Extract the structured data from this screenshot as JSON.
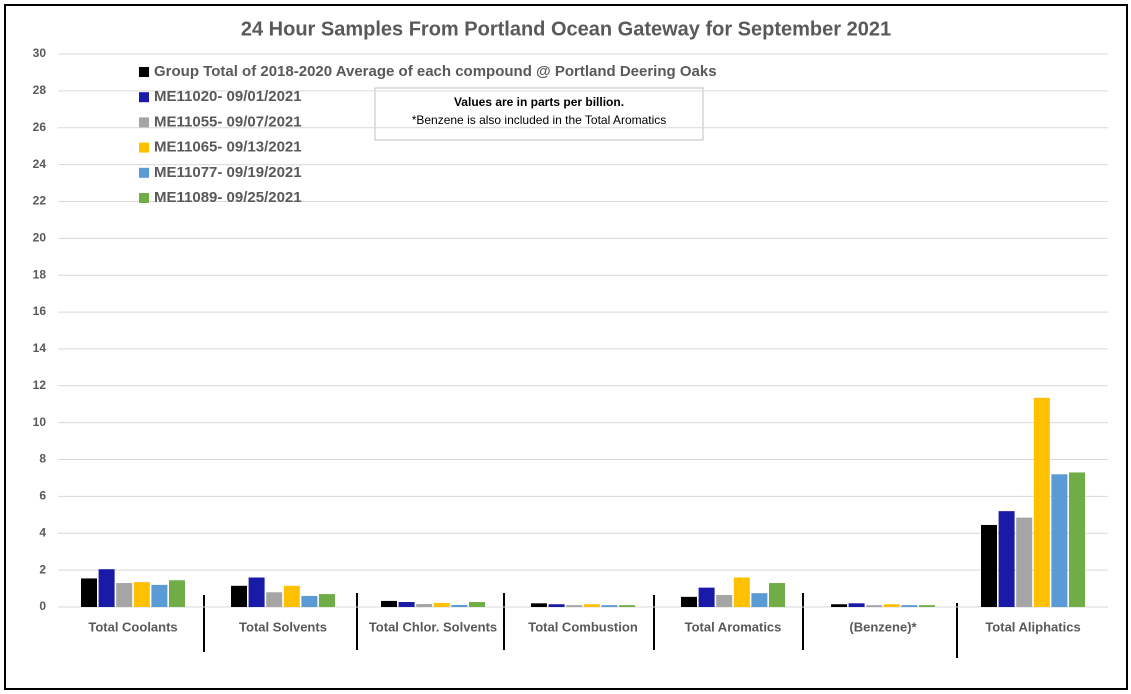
{
  "chart_data": {
    "type": "bar",
    "title": "24 Hour Samples From Portland Ocean Gateway for September 2021",
    "annotations": [
      "Values are in parts per billion.",
      "*Benzene is also included in the Total Aromatics"
    ],
    "categories": [
      "Total Coolants",
      "Total Solvents",
      "Total Chlor. Solvents",
      "Total Combustion",
      "Total Aromatics",
      "(Benzene)*",
      "Total Aliphatics"
    ],
    "series": [
      {
        "name": "Group Total of 2018-2020 Average of each compound @ Portland Deering Oaks",
        "color": "#000000",
        "values": [
          1.55,
          1.15,
          0.33,
          0.2,
          0.55,
          0.15,
          4.45
        ]
      },
      {
        "name": "ME11020- 09/01/2021",
        "color": "#1a1aa8",
        "values": [
          2.05,
          1.6,
          0.27,
          0.15,
          1.05,
          0.2,
          5.2
        ]
      },
      {
        "name": "ME11055- 09/07/2021",
        "color": "#a5a5a5",
        "values": [
          1.3,
          0.8,
          0.16,
          0.1,
          0.65,
          0.1,
          4.85
        ]
      },
      {
        "name": "ME11065- 09/13/2021",
        "color": "#ffc000",
        "values": [
          1.35,
          1.15,
          0.22,
          0.15,
          1.6,
          0.15,
          11.35
        ]
      },
      {
        "name": "ME11077- 09/19/2021",
        "color": "#5b9bd5",
        "values": [
          1.2,
          0.6,
          0.11,
          0.1,
          0.75,
          0.1,
          7.2
        ]
      },
      {
        "name": "ME11089- 09/25/2021",
        "color": "#70ad47",
        "values": [
          1.45,
          0.7,
          0.27,
          0.1,
          1.3,
          0.1,
          7.3
        ]
      }
    ],
    "ylim": [
      0,
      30
    ],
    "yticks": [
      0,
      2,
      4,
      6,
      8,
      10,
      12,
      14,
      16,
      18,
      20,
      22,
      24,
      26,
      28,
      30
    ],
    "grid": true,
    "legend": "top-left"
  }
}
